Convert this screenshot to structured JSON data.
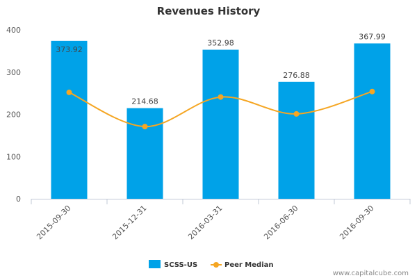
{
  "chart_data": {
    "type": "bar",
    "title": "Revenues History",
    "xlabel": "",
    "ylabel": "",
    "categories": [
      "2015-09-30",
      "2015-12-31",
      "2016-03-31",
      "2016-06-30",
      "2016-09-30"
    ],
    "ylim": [
      0,
      400
    ],
    "yticks": [
      0,
      100,
      200,
      300,
      400
    ],
    "grid": false,
    "legend_position": "bottom-center",
    "series": [
      {
        "name": "SCSS-US",
        "kind": "bar",
        "color": "#00a2e8",
        "values": [
          373.92,
          214.68,
          352.98,
          276.88,
          367.99
        ],
        "labels": [
          "373.92",
          "214.68",
          "352.98",
          "276.88",
          "367.99"
        ]
      },
      {
        "name": "Peer Median",
        "kind": "line",
        "smooth": true,
        "color": "#f5a623",
        "values": [
          252,
          171,
          241,
          201,
          254
        ]
      }
    ]
  },
  "footer": {
    "source": "www.capitalcube.com"
  }
}
